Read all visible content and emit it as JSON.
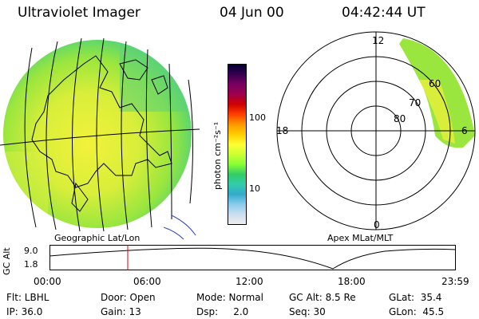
{
  "header": {
    "instrument": "Ultraviolet Imager",
    "date": "04 Jun 00",
    "time": "04:42:44 UT"
  },
  "left_map": {
    "caption": "Geographic Lat/Lon"
  },
  "right_map": {
    "caption": "Apex MLat/MLT",
    "mlt_labels": {
      "top": "12",
      "left": "18",
      "right": "6",
      "bottom": "0"
    },
    "lat_labels": [
      "60",
      "70",
      "80"
    ]
  },
  "colorbar": {
    "unit_label": "photon cm⁻²s⁻¹",
    "ticks": [
      "100",
      "10"
    ],
    "colors": [
      "#000033",
      "#3a0050",
      "#7a0060",
      "#a0004a",
      "#d00000",
      "#ff4000",
      "#ff9900",
      "#ffcc00",
      "#ffff33",
      "#ccff33",
      "#88ff33",
      "#33cc66",
      "#33ccaa",
      "#33aacc",
      "#88ccee",
      "#ccddee",
      "#eeeeee"
    ]
  },
  "altitude_plot": {
    "ylabel": "GC Alt",
    "y_ticks": [
      "9.0",
      "1.8"
    ],
    "x_ticks": [
      "00:00",
      "06:00",
      "12:00",
      "18:00",
      "23:59"
    ],
    "marker_color": "#dd0000"
  },
  "info": {
    "row1": {
      "flt": "Flt: LBHL",
      "door": "Door: Open",
      "mode": "Mode: Normal",
      "gcalt": "GC Alt: 8.5 Re",
      "glat": "GLat:  35.4"
    },
    "row2": {
      "ip": "IP: 36.0",
      "gain": "Gain: 13",
      "dsp": "Dsp:     2.0",
      "seq": "Seq: 30",
      "glon": "GLon:  45.5"
    }
  }
}
